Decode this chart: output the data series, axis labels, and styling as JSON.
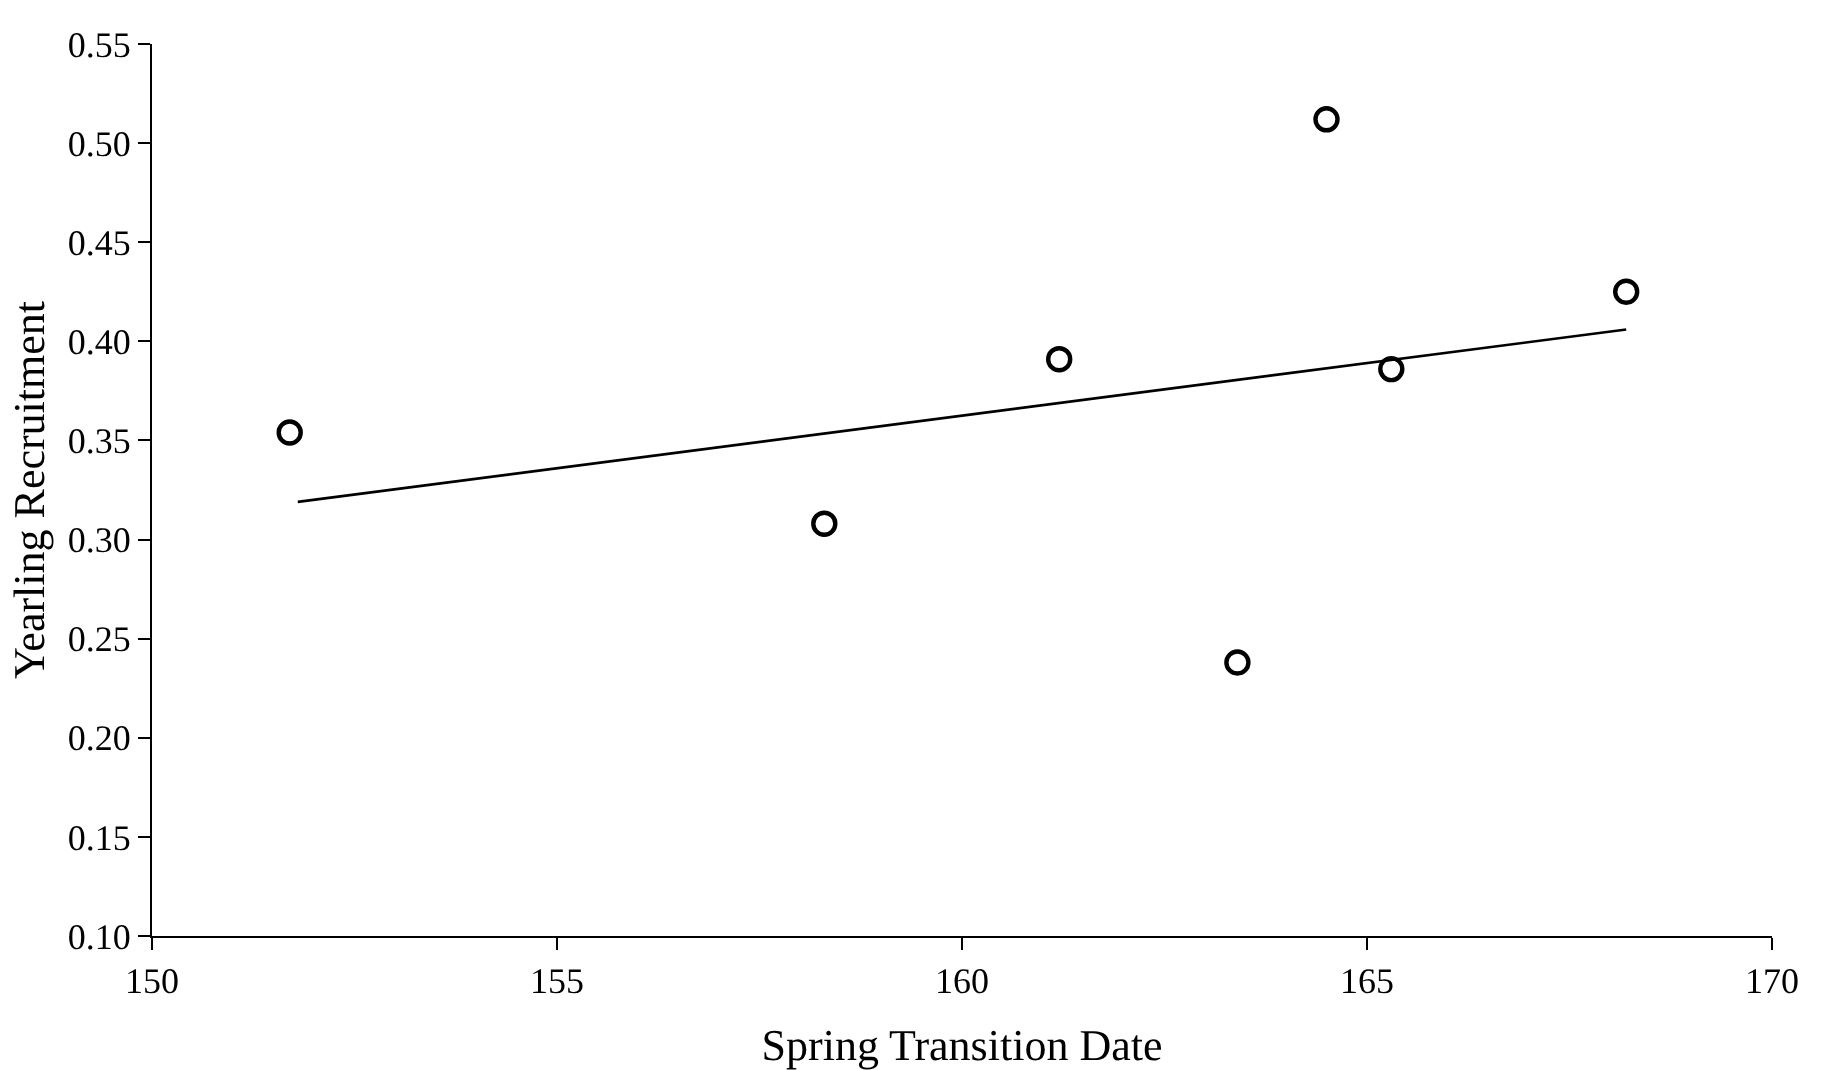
{
  "chart_data": {
    "type": "scatter",
    "xlabel": "Spring Transition Date",
    "ylabel": "Yearling Recruitment",
    "x": [
      151.7,
      158.3,
      161.2,
      163.4,
      164.5,
      165.3,
      168.2
    ],
    "series": [
      {
        "color": "#000000",
        "values": [
          0.354,
          0.308,
          0.391,
          0.238,
          0.512,
          0.386,
          0.425
        ]
      },
      {
        "type": "line",
        "marker": "none",
        "color": "#000000",
        "x": [
          151.8,
          168.2
        ],
        "values": [
          0.319,
          0.406
        ]
      }
    ],
    "xlim": [
      150,
      170
    ],
    "xticks": [
      150,
      155,
      160,
      165,
      170
    ],
    "ylim": [
      0.1,
      0.55
    ],
    "yticks": [
      {
        "value": 0.1,
        "label": "0.10"
      },
      {
        "value": 0.15,
        "label": "0.15"
      },
      {
        "value": 0.2,
        "label": "0.20"
      },
      {
        "value": 0.25,
        "label": "0.25"
      },
      {
        "value": 0.3,
        "label": "0.30"
      },
      {
        "value": 0.35,
        "label": "0.35"
      },
      {
        "value": 0.4,
        "label": "0.40"
      },
      {
        "value": 0.45,
        "label": "0.45"
      },
      {
        "value": 0.5,
        "label": "0.50"
      },
      {
        "value": 0.55,
        "label": "0.55"
      }
    ],
    "grid": false,
    "marker": "circle",
    "line_style": "solid"
  }
}
